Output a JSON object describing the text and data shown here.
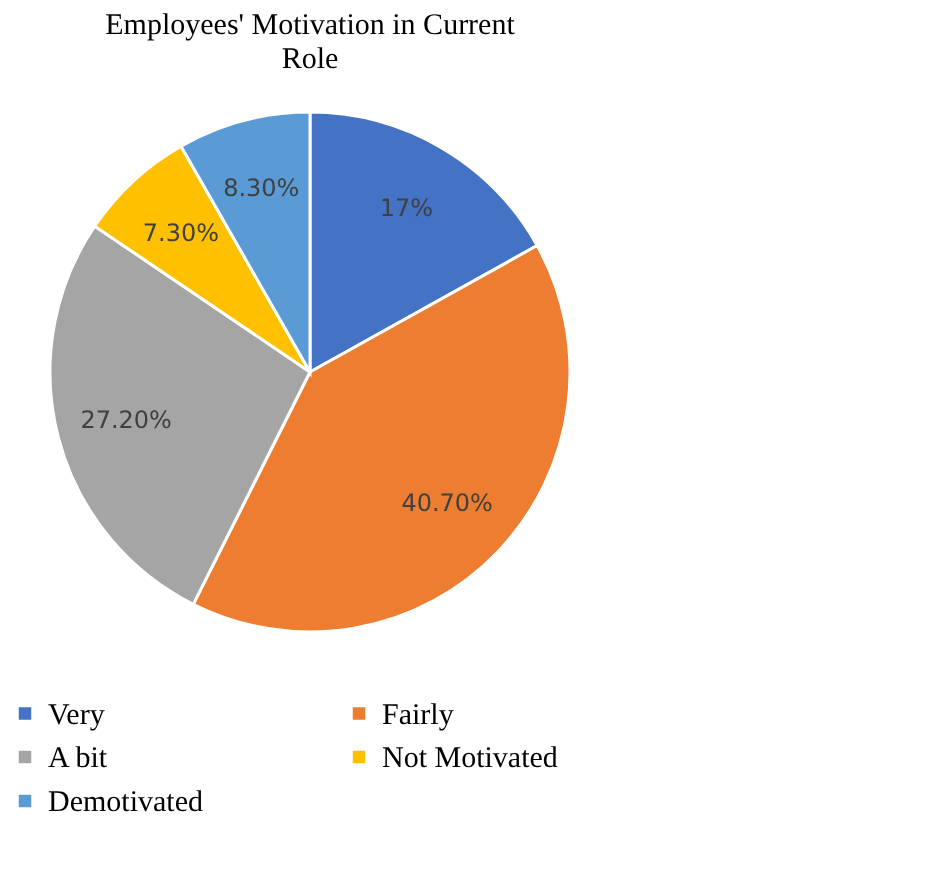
{
  "chart_data": {
    "type": "pie",
    "title": "Employees' Motivation in Current Role",
    "categories": [
      "Very",
      "Fairly",
      "A bit",
      "Not Motivated",
      "Demotivated"
    ],
    "values": [
      17,
      40.7,
      27.2,
      7.3,
      8.3
    ],
    "value_labels": [
      "17%",
      "40.70%",
      "27.20%",
      "7.30%",
      "8.30%"
    ],
    "colors": [
      "#4472c4",
      "#ed7d31",
      "#a5a5a5",
      "#ffc000",
      "#5b9bd5"
    ],
    "legend": "bottom"
  }
}
